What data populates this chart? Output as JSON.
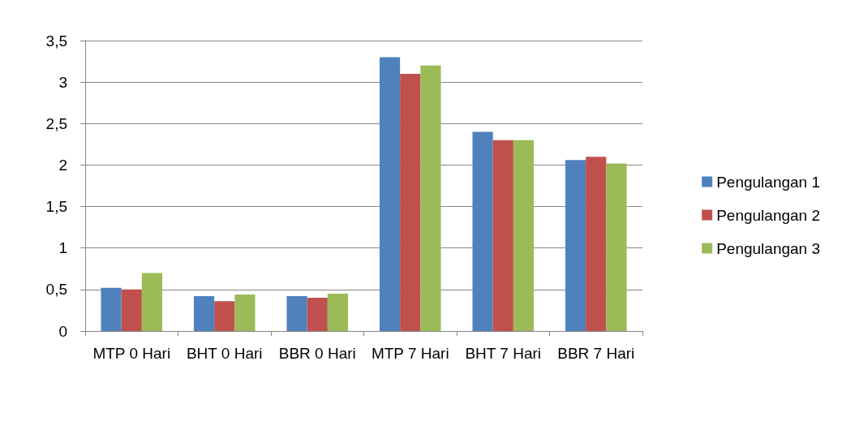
{
  "chart_data": {
    "type": "bar",
    "categories": [
      "MTP 0 Hari",
      "BHT 0 Hari",
      "BBR 0 Hari",
      "MTP 7 Hari",
      "BHT 7 Hari",
      "BBR 7 Hari"
    ],
    "series": [
      {
        "name": "Pengulangan 1",
        "color": "#4f81bd",
        "values": [
          0.52,
          0.42,
          0.42,
          3.3,
          2.4,
          2.06
        ]
      },
      {
        "name": "Pengulangan 2",
        "color": "#c0504d",
        "values": [
          0.5,
          0.36,
          0.4,
          3.1,
          2.3,
          2.1
        ]
      },
      {
        "name": "Pengulangan 3",
        "color": "#9bbb59",
        "values": [
          0.7,
          0.44,
          0.45,
          3.2,
          2.3,
          2.02
        ]
      }
    ],
    "ylim": [
      0,
      3.5
    ],
    "yticks": [
      0,
      {
        "value": 0.5,
        "label": "0,5"
      },
      1,
      {
        "value": 1.5,
        "label": "1,5"
      },
      2,
      {
        "value": 2.5,
        "label": "2,5"
      },
      3,
      {
        "value": 3.5,
        "label": "3,5"
      }
    ],
    "grid": "y",
    "legend": "right"
  }
}
